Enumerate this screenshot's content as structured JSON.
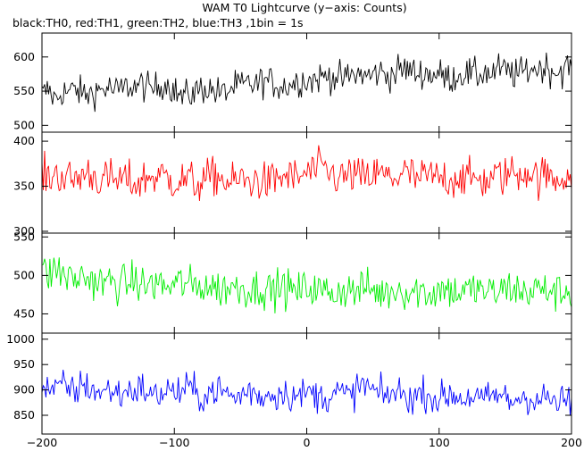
{
  "chart_data": {
    "type": "line",
    "title": "WAM T0 Lightcurve (y−axis: Counts)",
    "subtitle": "black:TH0, red:TH1, green:TH2, blue:TH3 ,1bin = 1s",
    "xlim": [
      -200,
      200
    ],
    "x_ticks": [
      -200,
      -100,
      0,
      100,
      200
    ],
    "x_tick_labels": [
      "−200",
      "−100",
      "0",
      "100",
      "200"
    ],
    "panels": [
      {
        "name": "TH0",
        "color": "#000000",
        "ylim": [
          490,
          635
        ],
        "y_ticks": [
          500,
          550,
          600
        ],
        "y_tick_labels": [
          "500",
          "550",
          "600"
        ],
        "values": [
          545,
          552,
          537,
          550,
          548,
          553,
          546,
          545,
          551,
          552,
          555,
          549,
          553,
          558,
          556,
          560,
          552,
          555,
          561,
          560,
          548,
          541,
          545,
          550,
          555,
          553,
          549,
          546,
          552,
          558,
          557,
          561,
          559,
          566,
          563,
          560,
          557,
          560,
          564,
          567,
          565,
          568,
          571,
          573,
          570,
          567,
          572,
          575,
          574,
          571,
          578,
          576,
          573,
          579,
          583,
          580,
          575,
          578,
          574,
          576,
          571,
          569,
          573,
          577,
          575,
          572,
          579,
          574,
          582,
          580,
          577,
          574,
          579,
          584,
          582,
          586,
          581,
          578,
          583,
          588
        ]
      },
      {
        "name": "TH1",
        "color": "#ff0000",
        "ylim": [
          298,
          410
        ],
        "y_ticks": [
          300,
          350,
          400
        ],
        "y_tick_labels": [
          "300",
          "350",
          "400"
        ],
        "values": [
          362,
          360,
          364,
          361,
          358,
          357,
          363,
          365,
          360,
          356,
          359,
          355,
          358,
          356,
          352,
          357,
          361,
          360,
          362,
          358,
          355,
          357,
          358,
          351,
          356,
          359,
          362,
          357,
          352,
          356,
          358,
          354,
          357,
          355,
          353,
          359,
          360,
          362,
          357,
          363,
          366,
          368,
          370,
          364,
          361,
          359,
          363,
          362,
          358,
          360,
          364,
          362,
          359,
          361,
          365,
          363,
          357,
          360,
          362,
          358,
          361,
          356,
          362,
          359,
          357,
          360,
          355,
          358,
          362,
          361,
          366,
          363,
          368,
          365,
          359,
          362,
          360,
          357,
          364,
          361
        ]
      },
      {
        "name": "TH2",
        "color": "#00ee00",
        "ylim": [
          425,
          555
        ],
        "y_ticks": [
          450,
          500,
          550
        ],
        "y_tick_labels": [
          "450",
          "500",
          "550"
        ],
        "values": [
          505,
          500,
          509,
          503,
          497,
          494,
          499,
          496,
          492,
          489,
          493,
          490,
          488,
          491,
          493,
          486,
          488,
          490,
          487,
          484,
          489,
          491,
          487,
          485,
          488,
          486,
          483,
          482,
          486,
          484,
          485,
          481,
          483,
          485,
          480,
          483,
          486,
          481,
          478,
          482,
          485,
          481,
          478,
          480,
          477,
          483,
          481,
          479,
          484,
          482,
          479,
          476,
          480,
          484,
          481,
          477,
          482,
          478,
          476,
          481,
          484,
          480,
          477,
          482,
          479,
          483,
          480,
          476,
          478,
          482,
          485,
          481,
          477,
          480,
          483,
          479,
          482,
          476,
          480,
          479
        ]
      },
      {
        "name": "TH3",
        "color": "#0000ff",
        "ylim": [
          813,
          1012
        ],
        "y_ticks": [
          850,
          900,
          950,
          1000
        ],
        "y_tick_labels": [
          "850",
          "900",
          "950",
          "1000"
        ],
        "values": [
          900,
          905,
          898,
          910,
          903,
          897,
          912,
          904,
          899,
          893,
          901,
          896,
          889,
          903,
          898,
          905,
          891,
          887,
          896,
          902,
          893,
          899,
          906,
          892,
          886,
          895,
          901,
          897,
          889,
          882,
          894,
          898,
          890,
          886,
          893,
          889,
          897,
          891,
          885,
          892,
          896,
          888,
          884,
          890,
          897,
          892,
          886,
          903,
          911,
          902,
          893,
          887,
          892,
          897,
          889,
          884,
          889,
          895,
          888,
          880,
          886,
          892,
          887,
          882,
          889,
          883,
          879,
          886,
          891,
          884,
          876,
          883,
          889,
          882,
          878,
          885,
          880,
          872,
          879,
          876
        ]
      }
    ]
  },
  "colors": {
    "frame": "#000000",
    "background": "#ffffff"
  }
}
